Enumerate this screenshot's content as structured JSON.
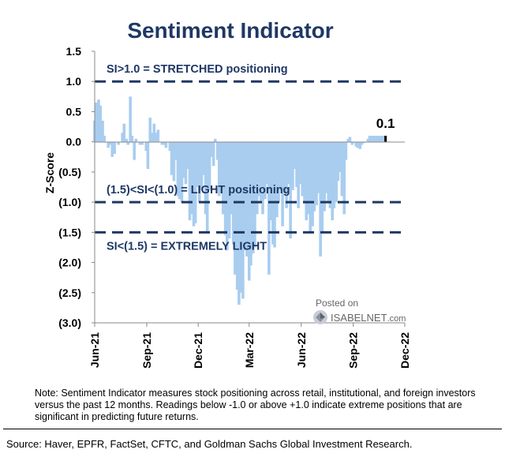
{
  "chart_data": {
    "type": "bar",
    "title": "Sentiment Indicator",
    "ylabel": "Z-Score",
    "ylim": [
      -3.0,
      1.5
    ],
    "yticks": [
      1.5,
      1.0,
      0.5,
      0.0,
      -0.5,
      -1.0,
      -1.5,
      -2.0,
      -2.5,
      -3.0
    ],
    "ytick_labels": [
      "1.5",
      "1.0",
      "0.5",
      "0.0",
      "(0.5)",
      "(1.0)",
      "(1.5)",
      "(2.0)",
      "(2.5)",
      "(3.0)"
    ],
    "xrange": [
      "2021-06-01",
      "2022-12-01"
    ],
    "xticks": [
      "2021-06-01",
      "2021-09-01",
      "2021-12-01",
      "2022-03-01",
      "2022-06-01",
      "2022-09-01",
      "2022-12-01"
    ],
    "xtick_labels": [
      "Jun-21",
      "Sep-21",
      "Dec-21",
      "Mar-22",
      "Jun-22",
      "Sep-22",
      "Dec-22"
    ],
    "bar_color": "#a9cdef",
    "last_bar_color": "#000000",
    "threshold_color": "#1f3864",
    "thresholds": [
      {
        "value": 1.0,
        "label": "SI>1.0 = STRETCHED positioning"
      },
      {
        "value": -1.0,
        "label": "(1.5)<SI<(1.0) = LIGHT positioning"
      },
      {
        "value": -1.5,
        "label": "SI<(1.5) = EXTREMELY LIGHT"
      }
    ],
    "last_value_label": "0.1",
    "series": [
      {
        "x": [
          "2021-06-01",
          "2021-06-04",
          "2021-06-08",
          "2021-06-11",
          "2021-06-15",
          "2021-06-18",
          "2021-06-22",
          "2021-06-25",
          "2021-06-29",
          "2021-07-02",
          "2021-07-06",
          "2021-07-09",
          "2021-07-13",
          "2021-07-16",
          "2021-07-20",
          "2021-07-23",
          "2021-07-27",
          "2021-07-30",
          "2021-08-03",
          "2021-08-06",
          "2021-08-10",
          "2021-08-13",
          "2021-08-17",
          "2021-08-20",
          "2021-08-24",
          "2021-08-27",
          "2021-08-31",
          "2021-09-03",
          "2021-09-07",
          "2021-09-10",
          "2021-09-14",
          "2021-09-17",
          "2021-09-21",
          "2021-09-24",
          "2021-09-28",
          "2021-10-01",
          "2021-10-05",
          "2021-10-08",
          "2021-10-12",
          "2021-10-15",
          "2021-10-19",
          "2021-10-22",
          "2021-10-26",
          "2021-10-29",
          "2021-11-02",
          "2021-11-05",
          "2021-11-09",
          "2021-11-12",
          "2021-11-16",
          "2021-11-19",
          "2021-11-23",
          "2021-11-26",
          "2021-11-30",
          "2021-12-03",
          "2021-12-07",
          "2021-12-10",
          "2021-12-14",
          "2021-12-17",
          "2021-12-21",
          "2021-12-24",
          "2021-12-28",
          "2021-12-31",
          "2022-01-04",
          "2022-01-07",
          "2022-01-11",
          "2022-01-14",
          "2022-01-18",
          "2022-01-21",
          "2022-01-25",
          "2022-01-28",
          "2022-02-01",
          "2022-02-04",
          "2022-02-08",
          "2022-02-11",
          "2022-02-15",
          "2022-02-18",
          "2022-02-22",
          "2022-02-25",
          "2022-03-01",
          "2022-03-04",
          "2022-03-08",
          "2022-03-11",
          "2022-03-15",
          "2022-03-18",
          "2022-03-22",
          "2022-03-25",
          "2022-03-29",
          "2022-04-01",
          "2022-04-05",
          "2022-04-08",
          "2022-04-12",
          "2022-04-15",
          "2022-04-19",
          "2022-04-22",
          "2022-04-26",
          "2022-04-29",
          "2022-05-03",
          "2022-05-06",
          "2022-05-10",
          "2022-05-13",
          "2022-05-17",
          "2022-05-20",
          "2022-05-24",
          "2022-05-27",
          "2022-05-31",
          "2022-06-03",
          "2022-06-07",
          "2022-06-10",
          "2022-06-14",
          "2022-06-17",
          "2022-06-21",
          "2022-06-24",
          "2022-06-28",
          "2022-07-01",
          "2022-07-05",
          "2022-07-08",
          "2022-07-12",
          "2022-07-15",
          "2022-07-19",
          "2022-07-22",
          "2022-07-26",
          "2022-07-29",
          "2022-08-02",
          "2022-08-05",
          "2022-08-09",
          "2022-08-12",
          "2022-08-16",
          "2022-08-19",
          "2022-08-23",
          "2022-08-26",
          "2022-08-30",
          "2022-09-02",
          "2022-09-06",
          "2022-09-09",
          "2022-09-13",
          "2022-09-16",
          "2022-09-20",
          "2022-09-23",
          "2022-09-27",
          "2022-09-30",
          "2022-10-04",
          "2022-10-07",
          "2022-10-11",
          "2022-10-14",
          "2022-10-18",
          "2022-10-21",
          "2022-10-25",
          "2022-10-28"
        ],
        "y": [
          0.35,
          0.65,
          0.7,
          0.6,
          0.35,
          0.1,
          0.0,
          -0.1,
          -0.05,
          -0.25,
          -0.2,
          0.0,
          -0.05,
          0.0,
          0.15,
          0.3,
          0.05,
          -0.05,
          0.75,
          0.1,
          -0.3,
          0.05,
          0.0,
          -0.05,
          -0.05,
          0.0,
          -0.15,
          -0.45,
          0.4,
          0.15,
          0.3,
          0.15,
          0.2,
          0.0,
          -0.05,
          -0.05,
          -0.1,
          0.0,
          -0.15,
          -0.55,
          -0.65,
          -0.3,
          -0.9,
          -0.95,
          -1.0,
          -0.6,
          -0.7,
          -0.45,
          -1.3,
          -1.2,
          -1.4,
          -1.35,
          -0.75,
          -1.0,
          -0.8,
          -0.55,
          -1.2,
          -1.5,
          -0.8,
          -0.25,
          -0.4,
          0.05,
          -0.3,
          -0.9,
          -0.85,
          -1.2,
          -1.55,
          -1.8,
          -1.6,
          -1.2,
          -1.7,
          -2.2,
          -2.45,
          -2.7,
          -2.5,
          -2.6,
          -1.8,
          -1.9,
          -2.3,
          -2.05,
          -1.85,
          -1.75,
          -1.2,
          -0.9,
          -1.0,
          -1.2,
          -0.95,
          -0.7,
          -2.2,
          -1.3,
          -1.7,
          -1.75,
          -1.25,
          -1.0,
          -0.8,
          -1.4,
          -0.85,
          -1.1,
          -0.7,
          -1.6,
          -0.8,
          -0.45,
          -0.75,
          -1.1,
          -0.7,
          -0.9,
          -1.0,
          -1.3,
          -1.2,
          -1.5,
          -1.4,
          -1.15,
          -1.05,
          -0.85,
          -1.9,
          -1.5,
          -1.15,
          -0.85,
          -1.0,
          -1.1,
          -1.3,
          -1.1,
          -1.0,
          -0.65,
          -0.5,
          -0.9,
          -1.2,
          -0.3,
          0.05,
          0.08,
          -0.05,
          -0.02,
          -0.08,
          -0.1,
          -0.12,
          -0.05,
          -0.02,
          0.0,
          0.05,
          0.1,
          0.1,
          0.1,
          0.1,
          0.1,
          0.1,
          0.1,
          0.1,
          0.1
        ]
      }
    ]
  },
  "note": "Note: Sentiment Indicator measures stock positioning across retail, institutional, and foreign investors versus the past 12 months. Readings below -1.0 or above +1.0 indicate extreme positions that are significant in predicting future returns.",
  "source": "Source: Haver, EPFR, FactSet, CFTC, and Goldman Sachs Global Investment Research.",
  "watermark": {
    "posted": "Posted on",
    "name": "ISABELNET",
    "domain": ".com"
  }
}
